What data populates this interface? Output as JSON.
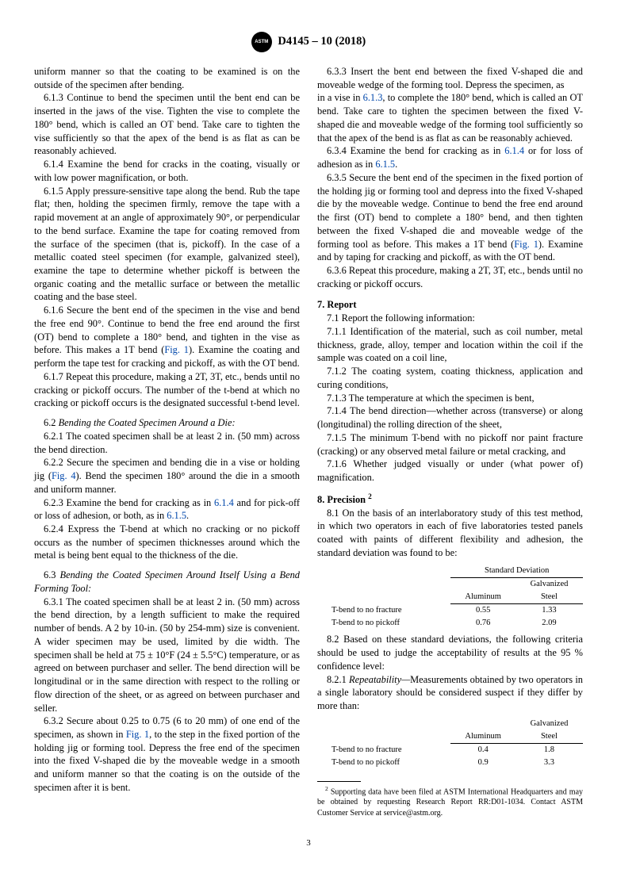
{
  "header": {
    "designation": "D4145 – 10 (2018)"
  },
  "col1": {
    "p_6_1_2_cont": "uniform manner so that the coating to be examined is on the outside of the specimen after bending.",
    "p_6_1_3": "6.1.3 Continue to bend the specimen until the bent end can be inserted in the jaws of the vise. Tighten the vise to complete the 180° bend, which is called an OT bend. Take care to tighten the vise sufficiently so that the apex of the bend is as flat as can be reasonably achieved.",
    "p_6_1_4": "6.1.4 Examine the bend for cracks in the coating, visually or with low power magnification, or both.",
    "p_6_1_5": "6.1.5 Apply pressure-sensitive tape along the bend. Rub the tape flat; then, holding the specimen firmly, remove the tape with a rapid movement at an angle of approximately 90°, or perpendicular to the bend surface. Examine the tape for coating removed from the surface of the specimen (that is, pickoff). In the case of a metallic coated steel specimen (for example, galvanized steel), examine the tape to determine whether pickoff is between the organic coating and the metallic surface or between the metallic coating and the base steel.",
    "p_6_1_6_a": "6.1.6 Secure the bent end of the specimen in the vise and bend the free end 90°. Continue to bend the free end around the first (OT) bend to complete a 180° bend, and tighten in the vise as before. This makes a 1T bend (",
    "p_6_1_6_fig": "Fig. 1",
    "p_6_1_6_b": "). Examine the coating and perform the tape test for cracking and pickoff, as with the OT bend.",
    "p_6_1_7": "6.1.7 Repeat this procedure, making a 2T, 3T, etc., bends until no cracking or pickoff occurs. The number of the t-bend at which no cracking or pickoff occurs is the designated successful t-bend level.",
    "h_6_2_num": "6.2 ",
    "h_6_2": "Bending the Coated Specimen Around a Die:",
    "p_6_2_1": "6.2.1 The coated specimen shall be at least 2 in. (50 mm) across the bend direction.",
    "p_6_2_2_a": "6.2.2 Secure the specimen and bending die in a vise or holding jig (",
    "p_6_2_2_fig": "Fig. 4",
    "p_6_2_2_b": "). Bend the specimen 180° around the die in a smooth and uniform manner.",
    "p_6_2_3_a": "6.2.3 Examine the bend for cracking as in ",
    "p_6_2_3_ref1": "6.1.4",
    "p_6_2_3_b": " and for pick-off or loss of adhesion, or both, as in ",
    "p_6_2_3_ref2": "6.1.5",
    "p_6_2_3_c": ".",
    "p_6_2_4": "6.2.4 Express the T-bend at which no cracking or no pickoff occurs as the number of specimen thicknesses around which the metal is being bent equal to the thickness of the die.",
    "h_6_3_num": "6.3 ",
    "h_6_3": "Bending the Coated Specimen Around Itself Using a Bend Forming Tool:",
    "p_6_3_1": "6.3.1 The coated specimen shall be at least 2 in. (50 mm) across the bend direction, by a length sufficient to make the required number of bends. A 2 by 10-in. (50 by 254-mm) size is convenient. A wider specimen may be used, limited by die width. The specimen shall be held at 75 ± 10°F (24 ± 5.5°C) temperature, or as agreed on between purchaser and seller. The bend direction will be longitudinal or in the same direction with respect to the rolling or flow direction of the sheet, or as agreed on between purchaser and seller.",
    "p_6_3_2_a": "6.3.2 Secure about 0.25 to 0.75 (6 to 20 mm) of one end of the specimen, as shown in ",
    "p_6_3_2_fig": "Fig. 1",
    "p_6_3_2_b": ", to the step in the fixed portion of the holding jig or forming tool. Depress the free end of the specimen into the fixed V-shaped die by the moveable wedge in a smooth and uniform manner so that the coating is on the outside of the specimen after it is bent.",
    "p_6_3_3": "6.3.3 Insert the bent end between the fixed V-shaped die and moveable wedge of the forming tool. Depress the specimen, as"
  },
  "col2": {
    "p_6_3_3_cont_a": "in a vise in ",
    "p_6_3_3_cont_ref": "6.1.3",
    "p_6_3_3_cont_b": ", to complete the 180° bend, which is called an OT bend. Take care to tighten the specimen between the fixed V-shaped die and moveable wedge of the forming tool sufficiently so that the apex of the bend is as flat as can be reasonably achieved.",
    "p_6_3_4_a": "6.3.4 Examine the bend for cracking as in ",
    "p_6_3_4_ref1": "6.1.4",
    "p_6_3_4_b": " or for loss of adhesion as in ",
    "p_6_3_4_ref2": "6.1.5",
    "p_6_3_4_c": ".",
    "p_6_3_5_a": "6.3.5 Secure the bent end of the specimen in the fixed portion of the holding jig or forming tool and depress into the fixed V-shaped die by the moveable wedge. Continue to bend the free end around the first (OT) bend to complete a 180° bend, and then tighten between the fixed V-shaped die and moveable wedge of the forming tool as before. This makes a 1T bend (",
    "p_6_3_5_fig": "Fig. 1",
    "p_6_3_5_b": "). Examine and by taping for cracking and pickoff, as with the OT bend.",
    "p_6_3_6": "6.3.6 Repeat this procedure, making a 2T, 3T, etc., bends until no cracking or pickoff occurs.",
    "h_7": "7. Report",
    "p_7_1": "7.1 Report the following information:",
    "p_7_1_1": "7.1.1 Identification of the material, such as coil number, metal thickness, grade, alloy, temper and location within the coil if the sample was coated on a coil line,",
    "p_7_1_2": "7.1.2 The coating system, coating thickness, application and curing conditions,",
    "p_7_1_3": "7.1.3 The temperature at which the specimen is bent,",
    "p_7_1_4": "7.1.4 The bend direction—whether across (transverse) or along (longitudinal) the rolling direction of the sheet,",
    "p_7_1_5": "7.1.5 The minimum T-bend with no pickoff nor paint fracture (cracking) or any observed metal failure or metal cracking, and",
    "p_7_1_6": "7.1.6 Whether judged visually or under (what power of) magnification.",
    "h_8": "8. Precision",
    "h_8_sup": "2",
    "p_8_1": "8.1 On the basis of an interlaboratory study of this test method, in which two operators in each of five laboratories tested panels coated with paints of different flexibility and adhesion, the standard deviation was found to be:",
    "p_8_2": "8.2 Based on these standard deviations, the following criteria should be used to judge the acceptability of results at the 95 % confidence level:",
    "p_8_2_1_a": "8.2.1 ",
    "p_8_2_1_i": "Repeatability—",
    "p_8_2_1_b": "Measurements obtained by two operators in a single laboratory should be considered suspect if they differ by more than:",
    "footnote": "Supporting data have been filed at ASTM International Headquarters and may be obtained by requesting Research Report RR:D01-1034. Contact ASTM Customer Service at service@astm.org.",
    "footnote_sup": "2"
  },
  "table1": {
    "head_sd": "Standard Deviation",
    "col_al": "Aluminum",
    "col_gs_a": "Galvanized",
    "col_gs_b": "Steel",
    "row1_label": "T-bend to no fracture",
    "row1_al": "0.55",
    "row1_gs": "1.33",
    "row2_label": "T-bend to no pickoff",
    "row2_al": "0.76",
    "row2_gs": "2.09"
  },
  "table2": {
    "col_al": "Aluminum",
    "col_gs_a": "Galvanized",
    "col_gs_b": "Steel",
    "row1_label": "T-bend to no fracture",
    "row1_al": "0.4",
    "row1_gs": "1.8",
    "row2_label": "T-bend to no pickoff",
    "row2_al": "0.9",
    "row2_gs": "3.3"
  },
  "page_number": "3"
}
